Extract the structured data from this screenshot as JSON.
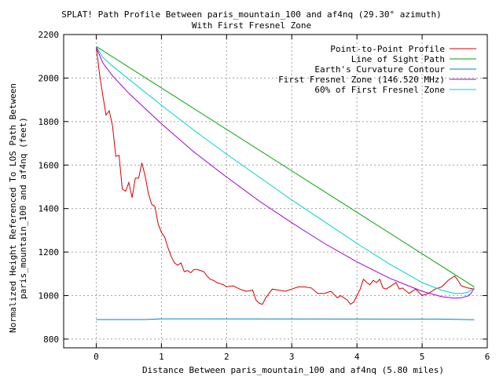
{
  "chart_data": {
    "type": "line",
    "title": "SPLAT! Path Profile Between paris_mountain_100 and af4nq (29.30° azimuth)",
    "subtitle": "With First Fresnel Zone",
    "xlabel": "Distance Between paris_mountain_100 and af4nq (5.80 miles)",
    "ylabel_lines": [
      "Normalized Height Referenced To LOS Path Between",
      "paris_mountain_100 and af4nq (feet)"
    ],
    "xlim": [
      -0.5,
      6
    ],
    "ylim": [
      760,
      2200
    ],
    "x_ticks": [
      0,
      1,
      2,
      3,
      4,
      5,
      6
    ],
    "y_ticks": [
      800,
      1000,
      1200,
      1400,
      1600,
      1800,
      2000,
      2200
    ],
    "grid": true,
    "legend_position": "top-right",
    "series": [
      {
        "name": "Point-to-Point Profile",
        "color": "#d00000",
        "x": [
          0,
          0.05,
          0.1,
          0.15,
          0.2,
          0.25,
          0.3,
          0.35,
          0.4,
          0.45,
          0.5,
          0.55,
          0.6,
          0.65,
          0.7,
          0.75,
          0.8,
          0.85,
          0.9,
          0.95,
          1.0,
          1.05,
          1.1,
          1.15,
          1.2,
          1.25,
          1.3,
          1.35,
          1.4,
          1.45,
          1.5,
          1.55,
          1.6,
          1.65,
          1.7,
          1.75,
          1.8,
          1.85,
          1.9,
          1.95,
          2.0,
          2.1,
          2.2,
          2.3,
          2.4,
          2.45,
          2.5,
          2.55,
          2.6,
          2.7,
          2.8,
          2.9,
          3.0,
          3.1,
          3.2,
          3.3,
          3.4,
          3.5,
          3.6,
          3.7,
          3.75,
          3.8,
          3.85,
          3.9,
          3.95,
          4.0,
          4.05,
          4.1,
          4.15,
          4.2,
          4.25,
          4.3,
          4.35,
          4.4,
          4.45,
          4.5,
          4.55,
          4.6,
          4.65,
          4.7,
          4.8,
          4.9,
          5.0,
          5.1,
          5.2,
          5.3,
          5.4,
          5.5,
          5.55,
          5.6,
          5.65,
          5.7,
          5.8
        ],
        "y": [
          2140,
          2020,
          1920,
          1830,
          1850,
          1780,
          1640,
          1645,
          1490,
          1480,
          1520,
          1450,
          1540,
          1540,
          1610,
          1550,
          1470,
          1420,
          1410,
          1330,
          1290,
          1270,
          1220,
          1180,
          1150,
          1140,
          1150,
          1110,
          1115,
          1105,
          1120,
          1120,
          1115,
          1110,
          1090,
          1075,
          1070,
          1060,
          1055,
          1050,
          1040,
          1045,
          1030,
          1020,
          1025,
          980,
          965,
          960,
          990,
          1030,
          1025,
          1020,
          1030,
          1040,
          1040,
          1035,
          1010,
          1010,
          1020,
          990,
          1000,
          990,
          980,
          960,
          970,
          1000,
          1030,
          1075,
          1060,
          1050,
          1070,
          1060,
          1075,
          1035,
          1030,
          1040,
          1050,
          1060,
          1030,
          1035,
          1010,
          1030,
          1000,
          1010,
          1030,
          1040,
          1070,
          1090,
          1070,
          1045,
          1040,
          1035,
          1030
        ]
      },
      {
        "name": "Line of Sight Path",
        "color": "#00a000",
        "x": [
          0,
          5.8
        ],
        "y": [
          2145,
          1040
        ]
      },
      {
        "name": "Earth's Curvature Contour",
        "color": "#0080c0",
        "x": [
          0,
          0.75,
          1.0,
          5.25,
          5.8
        ],
        "y": [
          890,
          890,
          893,
          892,
          889
        ]
      },
      {
        "name": "First Fresnel Zone (146.520 MHz)",
        "color": "#a000d0",
        "x": [
          0,
          0.1,
          0.25,
          0.5,
          1.0,
          1.5,
          2.0,
          2.5,
          3.0,
          3.5,
          4.0,
          4.5,
          5.0,
          5.3,
          5.5,
          5.6,
          5.7,
          5.75,
          5.8
        ],
        "y": [
          2140,
          2070,
          2010,
          1930,
          1790,
          1660,
          1545,
          1435,
          1335,
          1240,
          1155,
          1080,
          1020,
          995,
          988,
          990,
          998,
          1010,
          1035
        ]
      },
      {
        "name": "60% of First Fresnel Zone",
        "color": "#00d0d0",
        "x": [
          0,
          0.1,
          0.25,
          0.5,
          1.0,
          1.5,
          2.0,
          2.5,
          3.0,
          3.5,
          4.0,
          4.5,
          5.0,
          5.3,
          5.5,
          5.6,
          5.7,
          5.8
        ],
        "y": [
          2145,
          2095,
          2055,
          1995,
          1875,
          1760,
          1650,
          1545,
          1440,
          1340,
          1240,
          1145,
          1060,
          1025,
          1010,
          1010,
          1015,
          1035
        ]
      }
    ]
  }
}
